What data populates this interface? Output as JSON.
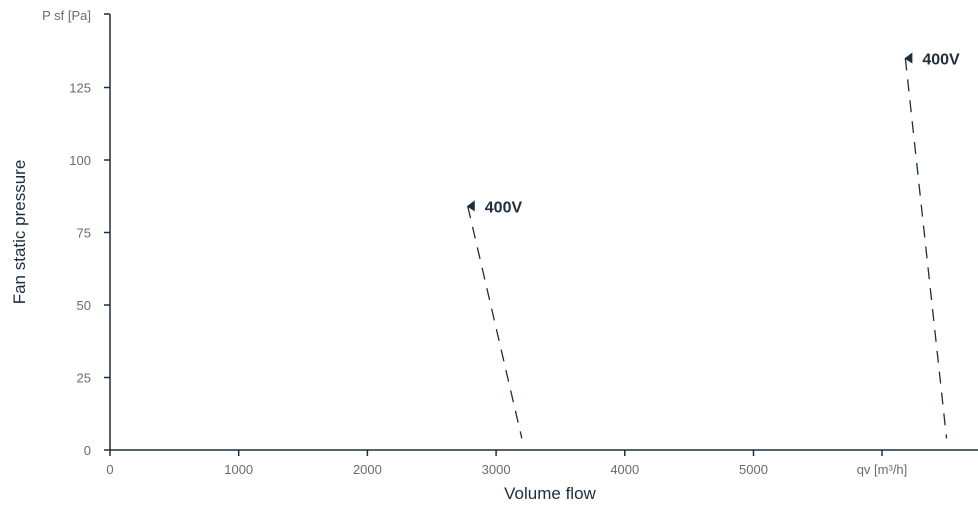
{
  "chart_data": {
    "type": "line",
    "xlabel": "Volume flow",
    "ylabel": "Fan static pressure",
    "x_unit_label": "qv [m³/h]",
    "y_unit_label": "P sf [Pa]",
    "xlim": [
      0,
      6600
    ],
    "ylim": [
      0,
      150
    ],
    "x_ticks": [
      0,
      1000,
      2000,
      3000,
      4000,
      5000
    ],
    "y_ticks": [
      0,
      25,
      50,
      75,
      100,
      125
    ],
    "grid": false,
    "line_style": "dashed",
    "colors": {
      "axis": "#1f2d3d",
      "series": "#1f2d3d",
      "tick_text": "#6b6b6b"
    },
    "series": [
      {
        "label": "400V",
        "x": [
          2780,
          3200
        ],
        "y": [
          84,
          4
        ]
      },
      {
        "label": "400V",
        "x": [
          6180,
          6500
        ],
        "y": [
          135,
          4
        ]
      }
    ]
  }
}
